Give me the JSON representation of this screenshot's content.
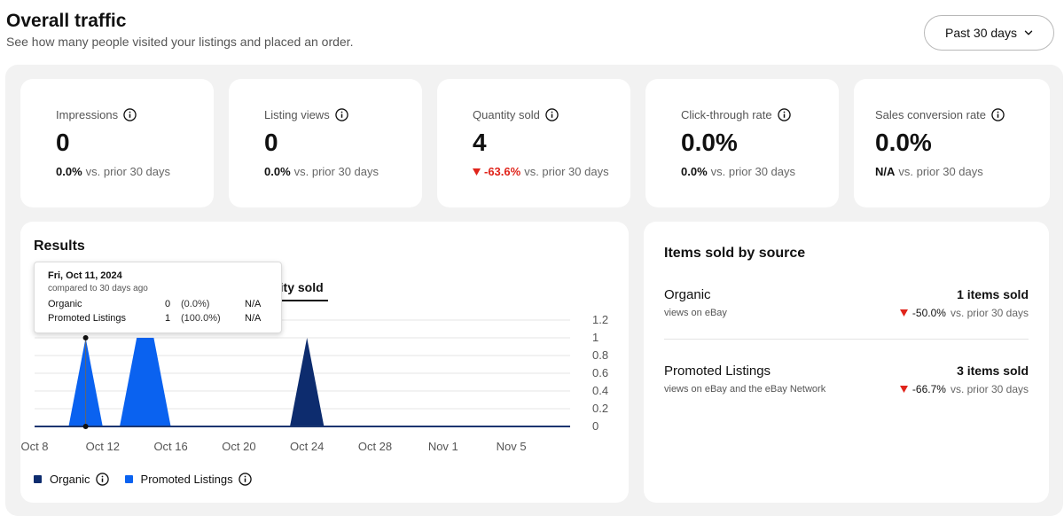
{
  "header": {
    "title": "Overall traffic",
    "subtitle": "See how many people visited your listings and placed an order.",
    "range_label": "Past 30 days"
  },
  "metrics": [
    {
      "label": "Impressions",
      "value": "0",
      "change": "0.0%",
      "change_suffix": "vs. prior 30 days",
      "trend": "neutral"
    },
    {
      "label": "Listing views",
      "value": "0",
      "change": "0.0%",
      "change_suffix": "vs. prior 30 days",
      "trend": "neutral"
    },
    {
      "label": "Quantity sold",
      "value": "4",
      "change": "-63.6%",
      "change_suffix": "vs. prior 30 days",
      "trend": "down"
    },
    {
      "label": "Click-through rate",
      "value": "0.0%",
      "change": "0.0%",
      "change_suffix": "vs. prior 30 days",
      "trend": "neutral"
    },
    {
      "label": "Sales conversion rate",
      "value": "0.0%",
      "change": "N/A",
      "change_suffix": "vs. prior 30 days",
      "trend": "neutral"
    }
  ],
  "results": {
    "title": "Results",
    "tab_label": "tity sold",
    "tooltip": {
      "date": "Fri, Oct 11, 2024",
      "subtitle": "compared to 30 days ago",
      "rows": [
        {
          "name": "Organic",
          "value": "0",
          "pct": "(0.0%)",
          "change": "N/A"
        },
        {
          "name": "Promoted Listings",
          "value": "1",
          "pct": "(100.0%)",
          "change": "N/A"
        }
      ]
    },
    "legend": [
      {
        "name": "Organic",
        "color": "#0d2c6e"
      },
      {
        "name": "Promoted Listings",
        "color": "#0a62f0"
      }
    ]
  },
  "chart_data": {
    "type": "area",
    "x_ticks": [
      "Oct 8",
      "Oct 12",
      "Oct 16",
      "Oct 20",
      "Oct 24",
      "Oct 28",
      "Nov 1",
      "Nov 5"
    ],
    "y_ticks": [
      "0",
      "0.2",
      "0.4",
      "0.6",
      "0.8",
      "1",
      "1.2"
    ],
    "ylim": [
      0,
      1.2
    ],
    "xlim": [
      "Oct 8",
      "Nov 8"
    ],
    "series": [
      {
        "name": "Promoted Listings",
        "color": "#0a62f0",
        "points": [
          [
            "Oct 10",
            0
          ],
          [
            "Oct 11",
            1
          ],
          [
            "Oct 12",
            0
          ],
          [
            "Oct 13",
            0
          ],
          [
            "Oct 14",
            1
          ],
          [
            "Oct 15",
            1
          ],
          [
            "Oct 16",
            0
          ]
        ]
      },
      {
        "name": "Organic",
        "color": "#0d2c6e",
        "points": [
          [
            "Oct 23",
            0
          ],
          [
            "Oct 24",
            1
          ],
          [
            "Oct 25",
            0
          ]
        ]
      }
    ],
    "highlight": {
      "date": "Oct 11"
    }
  },
  "sources": {
    "title": "Items sold by source",
    "rows": [
      {
        "name": "Organic",
        "desc": "views on eBay",
        "count": "1 items sold",
        "change": "-50.0%",
        "change_suffix": "vs. prior 30 days"
      },
      {
        "name": "Promoted Listings",
        "desc": "views on eBay and the eBay Network",
        "count": "3 items sold",
        "change": "-66.7%",
        "change_suffix": "vs. prior 30 days"
      }
    ]
  },
  "colors": {
    "negative": "#e0241b",
    "organic": "#0d2c6e",
    "promoted": "#0a62f0"
  }
}
